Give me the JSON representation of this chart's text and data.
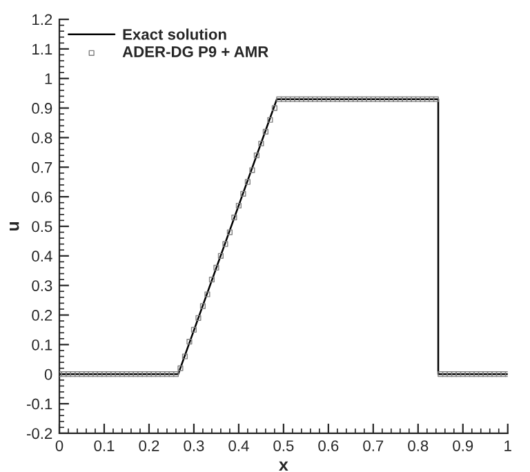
{
  "chart_data": {
    "type": "line",
    "xlabel": "x",
    "ylabel": "u",
    "xlim": [
      0,
      1
    ],
    "xticks": [
      0,
      0.1,
      0.2,
      0.3,
      0.4,
      0.5,
      0.6,
      0.7,
      0.8,
      0.9,
      1
    ],
    "ylim": [
      -0.2,
      1.2
    ],
    "yticks": [
      -0.2,
      -0.1,
      0,
      0.1,
      0.2,
      0.3,
      0.4,
      0.5,
      0.6,
      0.7,
      0.8,
      0.9,
      1,
      1.1,
      1.2
    ],
    "grid": false,
    "legend": "top left",
    "series": [
      {
        "name": "Exact solution",
        "type": "line",
        "color": "#000000",
        "marker": "none",
        "line_style": "solid",
        "x": [
          0,
          0.265,
          0.485,
          0.845,
          0.845,
          1
        ],
        "values": [
          0,
          0,
          0.93,
          0.93,
          0,
          0
        ]
      },
      {
        "name": "ADER-DG P9 + AMR",
        "type": "scatter",
        "color": "#808080",
        "marker": "square",
        "x": [
          0,
          0.01,
          0.02,
          0.03,
          0.04,
          0.05,
          0.06,
          0.07,
          0.08,
          0.09,
          0.1,
          0.11,
          0.12,
          0.13,
          0.14,
          0.15,
          0.16,
          0.17,
          0.18,
          0.19,
          0.2,
          0.21,
          0.22,
          0.23,
          0.24,
          0.25,
          0.26,
          0.27,
          0.28,
          0.29,
          0.3,
          0.31,
          0.32,
          0.33,
          0.34,
          0.35,
          0.36,
          0.37,
          0.38,
          0.39,
          0.4,
          0.41,
          0.42,
          0.43,
          0.44,
          0.45,
          0.46,
          0.47,
          0.48,
          0.49,
          0.5,
          0.51,
          0.52,
          0.53,
          0.54,
          0.55,
          0.56,
          0.57,
          0.58,
          0.59,
          0.6,
          0.61,
          0.62,
          0.63,
          0.64,
          0.65,
          0.66,
          0.67,
          0.68,
          0.69,
          0.7,
          0.71,
          0.72,
          0.73,
          0.74,
          0.75,
          0.76,
          0.77,
          0.78,
          0.79,
          0.8,
          0.81,
          0.82,
          0.83,
          0.84,
          0.85,
          0.86,
          0.87,
          0.88,
          0.89,
          0.9,
          0.91,
          0.92,
          0.93,
          0.94,
          0.95,
          0.96,
          0.97,
          0.98,
          0.99,
          1
        ],
        "values": [
          0,
          0,
          0,
          0,
          0,
          0,
          0,
          0,
          0,
          0,
          0,
          0,
          0,
          0,
          0,
          0,
          0,
          0,
          0,
          0,
          0,
          0,
          0,
          0,
          0,
          0,
          0,
          0.02,
          0.06,
          0.11,
          0.15,
          0.19,
          0.23,
          0.27,
          0.32,
          0.36,
          0.4,
          0.44,
          0.48,
          0.53,
          0.57,
          0.61,
          0.65,
          0.69,
          0.74,
          0.78,
          0.82,
          0.86,
          0.9,
          0.93,
          0.93,
          0.93,
          0.93,
          0.93,
          0.93,
          0.93,
          0.93,
          0.93,
          0.93,
          0.93,
          0.93,
          0.93,
          0.93,
          0.93,
          0.93,
          0.93,
          0.93,
          0.93,
          0.93,
          0.93,
          0.93,
          0.93,
          0.93,
          0.93,
          0.93,
          0.93,
          0.93,
          0.93,
          0.93,
          0.93,
          0.93,
          0.93,
          0.93,
          0.93,
          0.93,
          0,
          0,
          0,
          0,
          0,
          0,
          0,
          0,
          0,
          0,
          0,
          0,
          0,
          0,
          0,
          0
        ]
      }
    ]
  }
}
